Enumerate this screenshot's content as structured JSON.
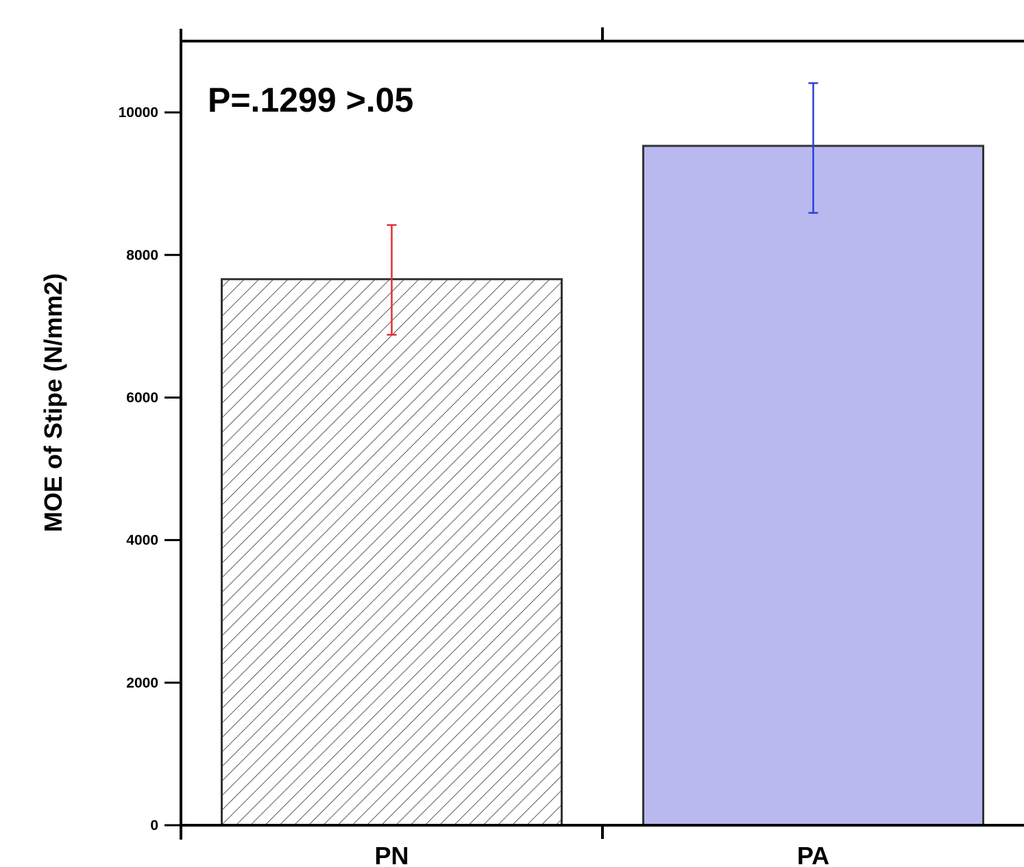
{
  "chart_data": {
    "type": "bar",
    "title": "",
    "xlabel": "",
    "ylabel": "MOE of Stipe (N/mm2)",
    "annotation": "P=.1299 >.05",
    "categories": [
      "PN",
      "PA"
    ],
    "values": [
      7660,
      9530
    ],
    "error_bars": [
      {
        "lower": 6880,
        "upper": 8420
      },
      {
        "lower": 8590,
        "upper": 10410
      }
    ],
    "styles": [
      {
        "fill": "hatch",
        "error_color": "#e03030"
      },
      {
        "fill": "#b9b9f0",
        "error_color": "#2a3fd8"
      }
    ],
    "ylim": [
      0,
      11000
    ],
    "yticks": [
      0,
      2000,
      4000,
      6000,
      8000,
      10000
    ],
    "grid": false,
    "legend": "none"
  }
}
